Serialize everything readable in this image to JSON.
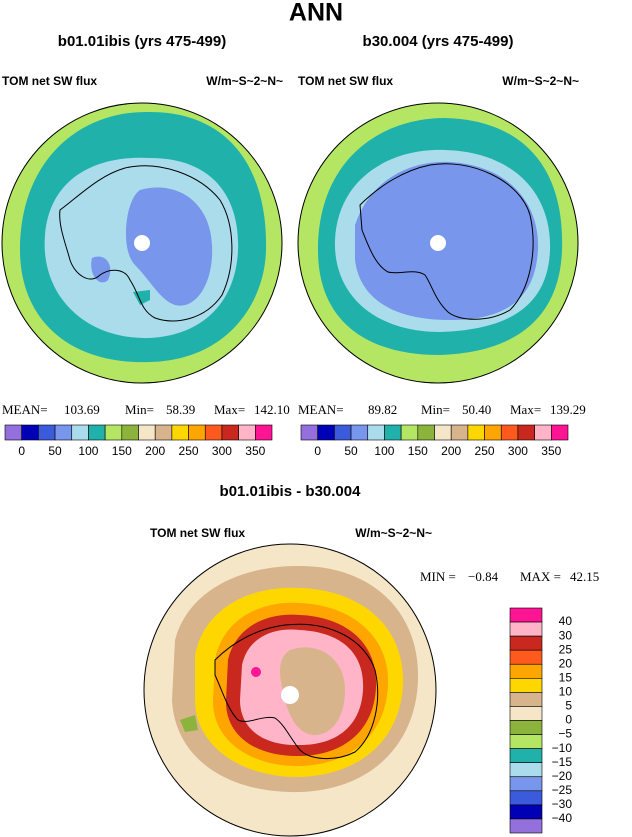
{
  "title": "ANN",
  "palette": [
    "#9370db",
    "#0000b4",
    "#3c5adc",
    "#7896eb",
    "#aadceb",
    "#20b2aa",
    "#b4e664",
    "#8cb43c",
    "#f5e6c8",
    "#d7b48c",
    "#ffd700",
    "#ffa500",
    "#ff5a1e",
    "#c8281e",
    "#ffb4c8",
    "#ff1493"
  ],
  "panels": [
    {
      "case": "b01.01ibis (yrs 475-499)",
      "variable": "TOM net SW flux",
      "units": "W/m~S~2~N~",
      "stats": {
        "mean_label": "MEAN=",
        "mean": "103.69",
        "min_label": "Min=",
        "min": "58.39",
        "max_label": "Max=",
        "max": "142.10"
      },
      "colorbar_labels": [
        "0",
        "50",
        "100",
        "150",
        "200",
        "250",
        "300",
        "350"
      ]
    },
    {
      "case": "b30.004 (yrs 475-499)",
      "variable": "TOM net SW flux",
      "units": "W/m~S~2~N~",
      "stats": {
        "mean_label": "MEAN=",
        "mean": "89.82",
        "min_label": "Min=",
        "min": "50.40",
        "max_label": "Max=",
        "max": "139.29"
      },
      "colorbar_labels": [
        "0",
        "50",
        "100",
        "150",
        "200",
        "250",
        "300",
        "350"
      ]
    }
  ],
  "difference": {
    "case": "b01.01ibis - b30.004",
    "variable": "TOM net SW flux",
    "units": "W/m~S~2~N~",
    "stats": {
      "min_label": "MIN =",
      "min": "−0.84",
      "max_label": "MAX =",
      "max": "42.15"
    },
    "colorbar_labels": [
      "40",
      "30",
      "25",
      "20",
      "15",
      "10",
      "5",
      "0",
      "−5",
      "−10",
      "−15",
      "−20",
      "−25",
      "−30",
      "−40"
    ]
  }
}
